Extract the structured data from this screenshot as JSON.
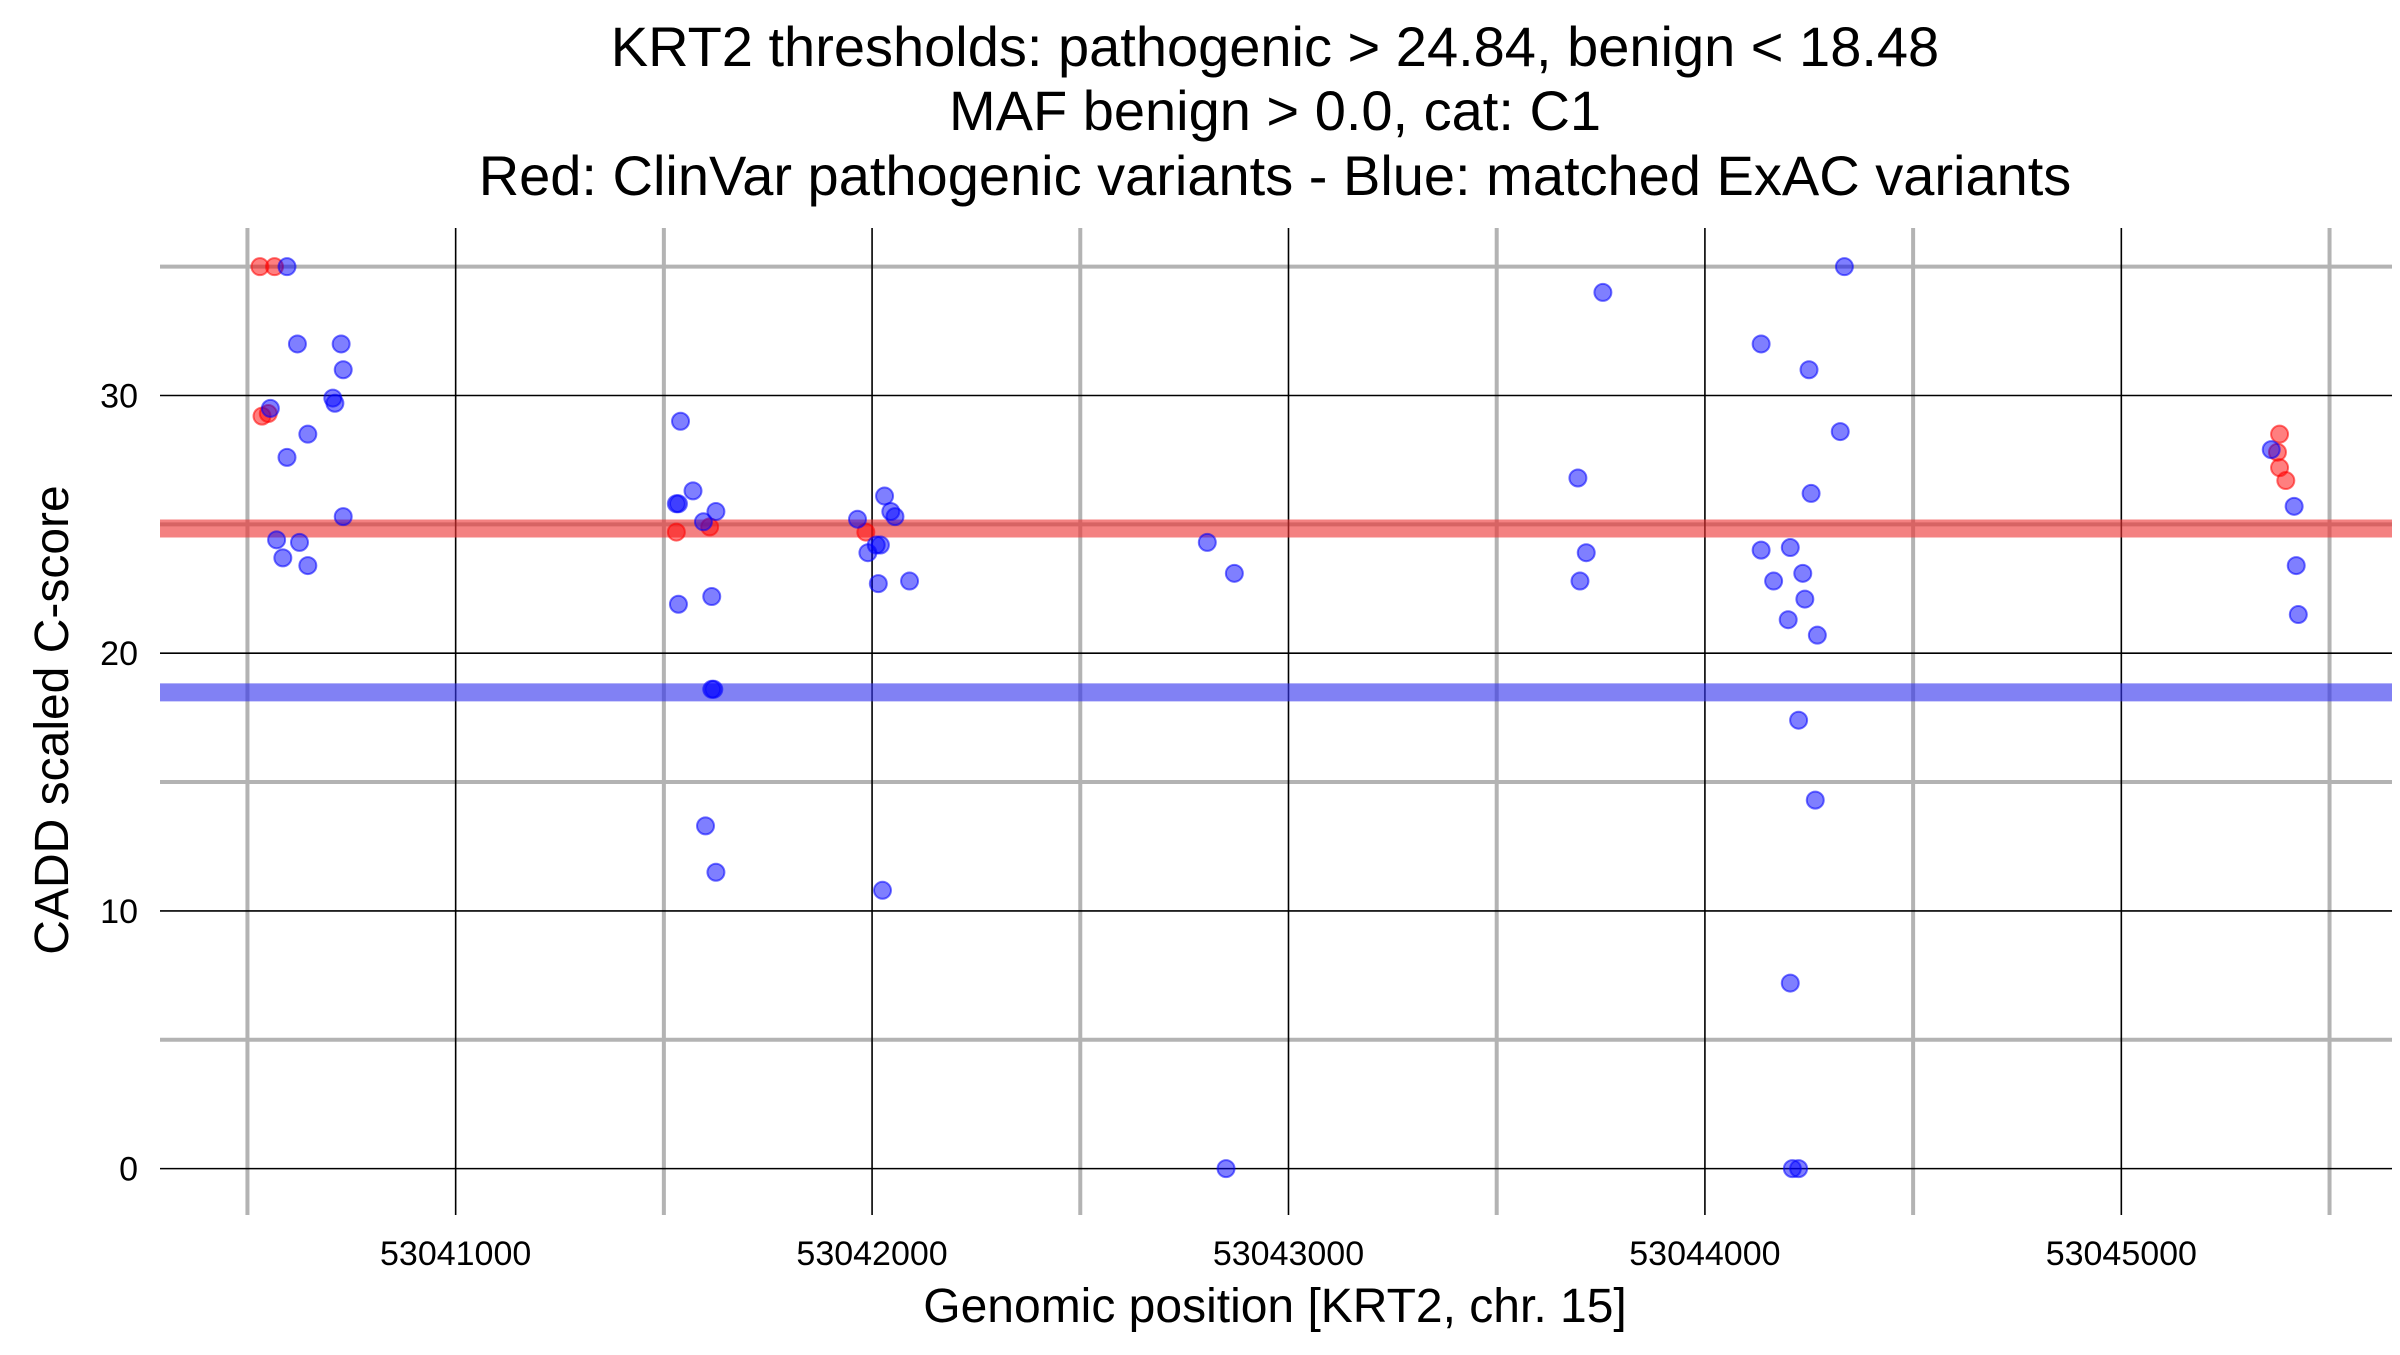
{
  "chart_data": {
    "type": "scatter",
    "title_lines": [
      "KRT2 thresholds: pathogenic > 24.84, benign < 18.48",
      "MAF benign > 0.0, cat: C1",
      "Red: ClinVar pathogenic variants - Blue: matched ExAC variants"
    ],
    "xlabel": "Genomic position [KRT2, chr. 15]",
    "ylabel": "CADD scaled C-score",
    "xlim": [
      53040290,
      53045650
    ],
    "ylim": [
      -1.8,
      36.5
    ],
    "x_major_ticks": [
      53041000,
      53042000,
      53043000,
      53044000,
      53045000
    ],
    "x_major_tick_labels": [
      "53041000",
      "53042000",
      "53043000",
      "53044000",
      "53045000"
    ],
    "x_minor_ticks": [
      53040500,
      53041500,
      53042500,
      53043500,
      53044500,
      53045500
    ],
    "y_major_ticks": [
      0,
      10,
      20,
      30
    ],
    "y_major_tick_labels": [
      "0",
      "10",
      "20",
      "30"
    ],
    "y_minor_ticks": [
      5,
      15,
      25,
      35
    ],
    "grid": true,
    "thresholds": [
      {
        "value": 24.84,
        "color": "#ee3333"
      },
      {
        "value": 18.48,
        "color": "#3333ee"
      }
    ],
    "colors": {
      "pathogenic": "#ff0000",
      "benign": "#0000ff"
    },
    "series": [
      {
        "key": "pathogenic",
        "points": [
          [
            53040530,
            35
          ],
          [
            53040565,
            35
          ],
          [
            53040535,
            29.2
          ],
          [
            53040550,
            29.3
          ],
          [
            53041530,
            24.7
          ],
          [
            53041610,
            24.9
          ],
          [
            53041985,
            24.7
          ],
          [
            53045380,
            28.5
          ],
          [
            53045375,
            27.8
          ],
          [
            53045380,
            27.2
          ],
          [
            53045395,
            26.7
          ]
        ]
      },
      {
        "key": "benign",
        "points": [
          [
            53040595,
            35
          ],
          [
            53040620,
            32
          ],
          [
            53040725,
            32
          ],
          [
            53040730,
            31
          ],
          [
            53040705,
            29.9
          ],
          [
            53040710,
            29.7
          ],
          [
            53040555,
            29.5
          ],
          [
            53040645,
            28.5
          ],
          [
            53040595,
            27.6
          ],
          [
            53040730,
            25.3
          ],
          [
            53040570,
            24.4
          ],
          [
            53040625,
            24.3
          ],
          [
            53040585,
            23.7
          ],
          [
            53040645,
            23.4
          ],
          [
            53041540,
            29
          ],
          [
            53041570,
            26.3
          ],
          [
            53041530,
            25.8
          ],
          [
            53041535,
            25.8
          ],
          [
            53041625,
            25.5
          ],
          [
            53041595,
            25.1
          ],
          [
            53041615,
            22.2
          ],
          [
            53041535,
            21.9
          ],
          [
            53041615,
            18.6
          ],
          [
            53041620,
            18.6
          ],
          [
            53041600,
            13.3
          ],
          [
            53041625,
            11.5
          ],
          [
            53042030,
            26.1
          ],
          [
            53042045,
            25.5
          ],
          [
            53042055,
            25.3
          ],
          [
            53041965,
            25.2
          ],
          [
            53042010,
            24.2
          ],
          [
            53042020,
            24.2
          ],
          [
            53041990,
            23.9
          ],
          [
            53042015,
            22.7
          ],
          [
            53042090,
            22.8
          ],
          [
            53042025,
            10.8
          ],
          [
            53042805,
            24.3
          ],
          [
            53042870,
            23.1
          ],
          [
            53042850,
            0
          ],
          [
            53043755,
            34
          ],
          [
            53043695,
            26.8
          ],
          [
            53043715,
            23.9
          ],
          [
            53043700,
            22.8
          ],
          [
            53044335,
            35
          ],
          [
            53044135,
            32
          ],
          [
            53044250,
            31
          ],
          [
            53044325,
            28.6
          ],
          [
            53044255,
            26.2
          ],
          [
            53044205,
            24.1
          ],
          [
            53044135,
            24
          ],
          [
            53044235,
            23.1
          ],
          [
            53044165,
            22.8
          ],
          [
            53044240,
            22.1
          ],
          [
            53044270,
            20.7
          ],
          [
            53044200,
            21.3
          ],
          [
            53044225,
            17.4
          ],
          [
            53044265,
            14.3
          ],
          [
            53044205,
            7.2
          ],
          [
            53044210,
            0
          ],
          [
            53044225,
            0
          ],
          [
            53045360,
            27.9
          ],
          [
            53045415,
            25.7
          ],
          [
            53045420,
            23.4
          ],
          [
            53045425,
            21.5
          ]
        ]
      }
    ]
  }
}
